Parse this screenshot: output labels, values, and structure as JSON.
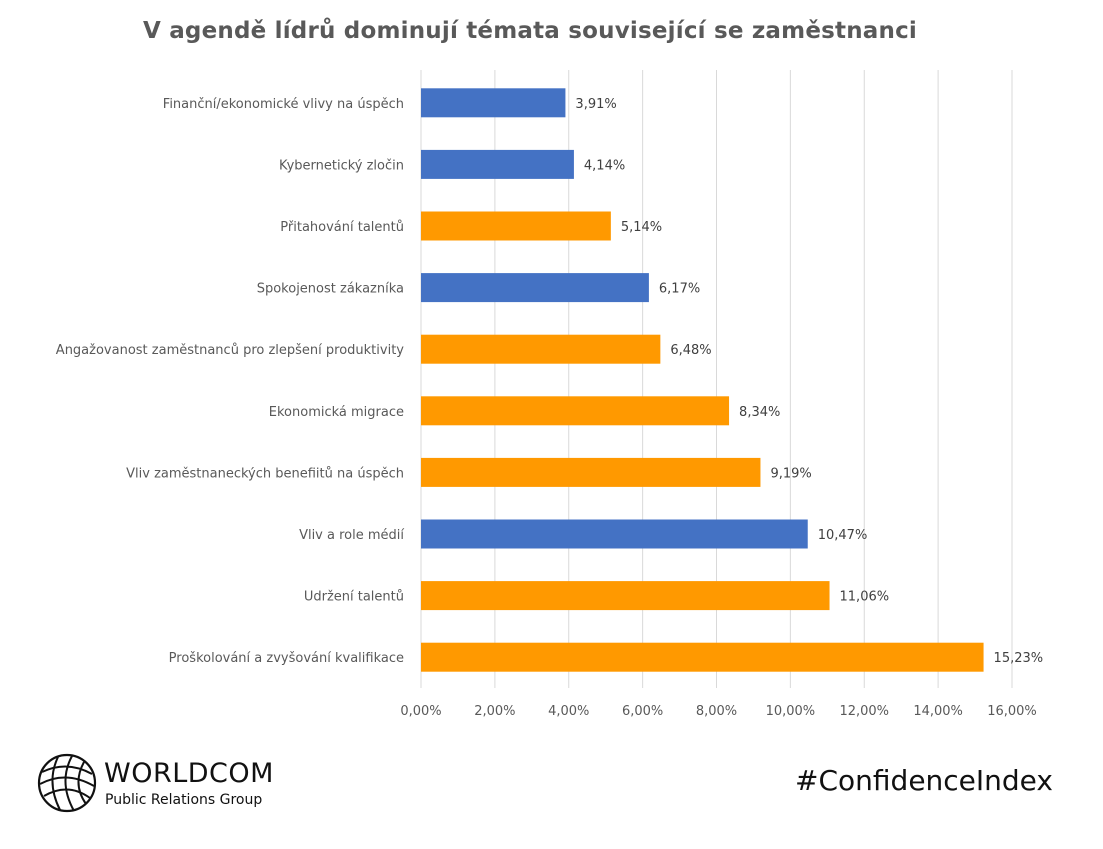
{
  "chart_data": {
    "type": "bar",
    "orientation": "horizontal",
    "title": "V agendě lídrů dominují témata související se zaměstnanci",
    "xlabel": "",
    "ylabel": "",
    "xlim": [
      0,
      16
    ],
    "x_ticks": [
      "0,00%",
      "2,00%",
      "4,00%",
      "6,00%",
      "8,00%",
      "10,00%",
      "12,00%",
      "14,00%",
      "16,00%"
    ],
    "grid": true,
    "legend": "none",
    "colors": {
      "blue": "#4472C4",
      "orange": "#FF9900"
    },
    "categories": [
      "Finanční/ekonomické vlivy na úspěch",
      "Kybernetický zločin",
      "Přitahování talentů",
      "Spokojenost zákazníka",
      "Angažovanost zaměstnanců pro zlepšení produktivity",
      "Ekonomická migrace",
      "Vliv zaměstnaneckých benefiitů na úspěch",
      "Vliv a role médií",
      "Udržení talentů",
      "Proškolování a zvyšování kvalifikace"
    ],
    "values": [
      3.91,
      4.14,
      5.14,
      6.17,
      6.48,
      8.34,
      9.19,
      10.47,
      11.06,
      15.23
    ],
    "value_labels": [
      "3,91%",
      "4,14%",
      "5,14%",
      "6,17%",
      "6,48%",
      "8,34%",
      "9,19%",
      "10,47%",
      "11,06%",
      "15,23%"
    ],
    "bar_colors": [
      "blue",
      "blue",
      "orange",
      "blue",
      "orange",
      "orange",
      "orange",
      "blue",
      "orange",
      "orange"
    ]
  },
  "branding": {
    "logo_name": "WORLDCOM",
    "logo_subtitle": "Public Relations Group",
    "hashtag": "#ConfidenceIndex"
  }
}
